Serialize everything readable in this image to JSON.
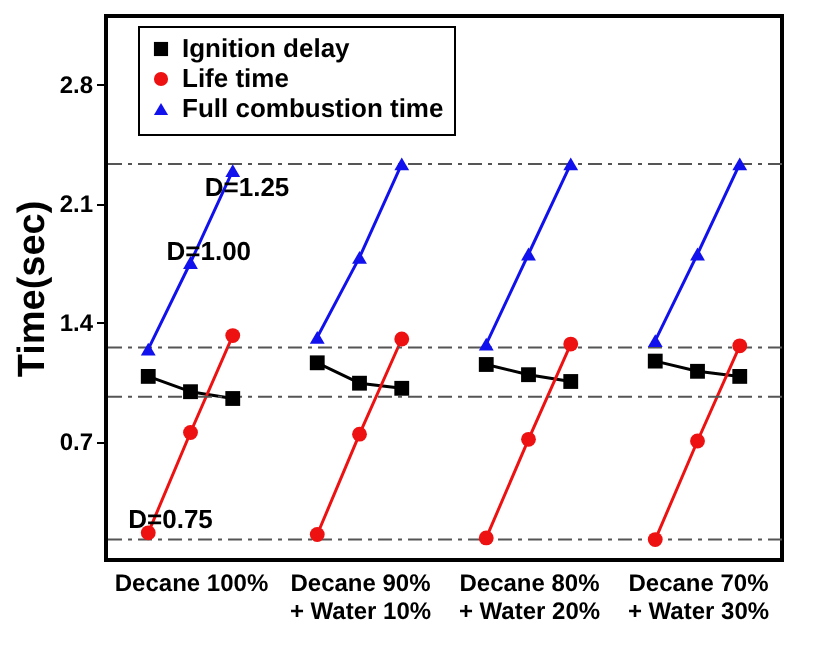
{
  "chart_data": {
    "type": "line",
    "ylabel": "Time(sec)",
    "categories": [
      null,
      "Decane 100%",
      null,
      null,
      null,
      "Decane 90%\n+ Water 10%",
      null,
      null,
      null,
      "Decane 80%\n+ Water 20%",
      null,
      null,
      null,
      "Decane 70%\n+ Water 30%",
      null
    ],
    "series": [
      {
        "name": "Ignition delay",
        "color": "#000000",
        "marker": "square",
        "values": [
          1.08,
          0.99,
          0.95,
          null,
          1.16,
          1.04,
          1.01,
          null,
          1.15,
          1.09,
          1.05,
          null,
          1.17,
          1.11,
          1.08
        ]
      },
      {
        "name": "Life time",
        "color": "#ee1111",
        "marker": "circle",
        "values": [
          0.16,
          0.75,
          1.32,
          null,
          0.15,
          0.74,
          1.3,
          null,
          0.13,
          0.71,
          1.27,
          null,
          0.12,
          0.7,
          1.26
        ]
      },
      {
        "name": "Full combustion time",
        "color": "#1111ee",
        "marker": "triangle",
        "values": [
          1.24,
          1.75,
          2.29,
          null,
          1.31,
          1.78,
          2.33,
          null,
          1.27,
          1.8,
          2.33,
          null,
          1.29,
          1.8,
          2.33
        ]
      }
    ],
    "ylim": [
      0,
      3.2
    ],
    "yticks": [
      0.7,
      1.4,
      2.1,
      2.8
    ],
    "ref_lines": [
      {
        "axis": "y",
        "value": 2.33,
        "line_style": "dashed",
        "color": "#555555"
      },
      {
        "axis": "y",
        "value": 1.25,
        "line_style": "dashed",
        "color": "#555555"
      },
      {
        "axis": "y",
        "value": 0.96,
        "line_style": "dashed",
        "color": "#555555"
      },
      {
        "axis": "y",
        "value": 0.12,
        "line_style": "dashed",
        "color": "#555555"
      }
    ],
    "annotations": [
      "D=0.75",
      "D=1.00",
      "D=1.25"
    ],
    "legend": "top left",
    "grid": false
  }
}
